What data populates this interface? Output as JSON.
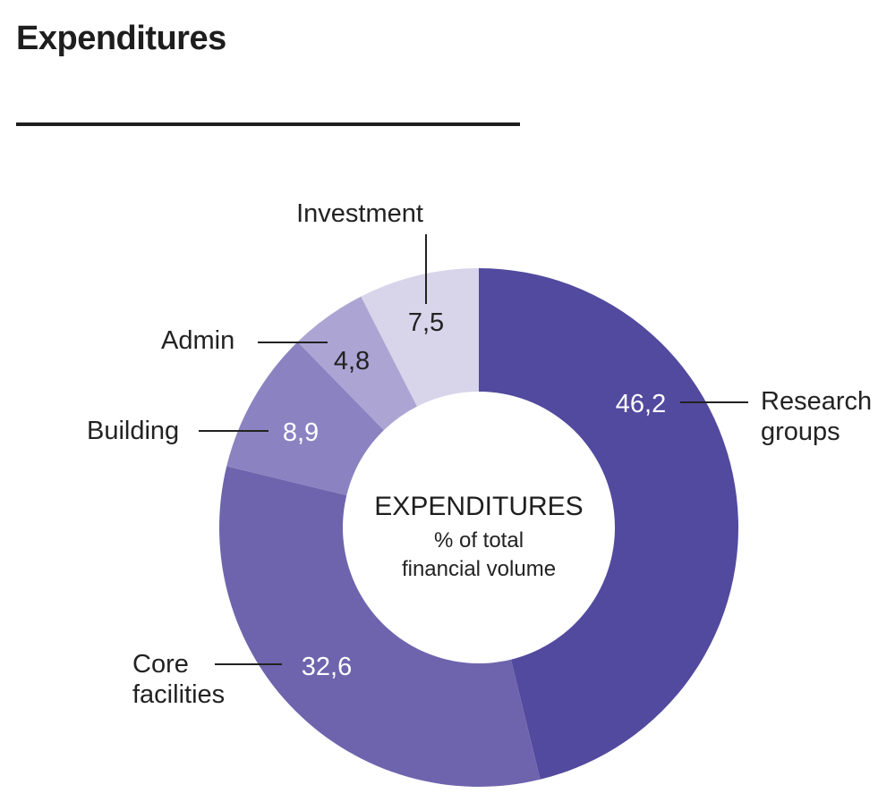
{
  "header": {
    "title": "Expenditures"
  },
  "chart_data": {
    "type": "pie",
    "donut": true,
    "center_title": "EXPENDITURES",
    "center_subtitle": [
      "% of total",
      "financial volume"
    ],
    "slices": [
      {
        "label": [
          "Research",
          "groups"
        ],
        "value": 46.2,
        "display": "46,2",
        "color": "#524a9e",
        "value_color": "#ffffff"
      },
      {
        "label": [
          "Core",
          "facilities"
        ],
        "value": 32.6,
        "display": "32,6",
        "color": "#6e64ad",
        "value_color": "#ffffff"
      },
      {
        "label": [
          "Building"
        ],
        "value": 8.9,
        "display": "8,9",
        "color": "#8b82c2",
        "value_color": "#ffffff"
      },
      {
        "label": [
          "Admin"
        ],
        "value": 4.8,
        "display": "4,8",
        "color": "#aca5d3",
        "value_color": "#222222"
      },
      {
        "label": [
          "Investment"
        ],
        "value": 7.5,
        "display": "7,5",
        "color": "#d8d4ea",
        "value_color": "#222222"
      }
    ],
    "value_unit": "%",
    "legend": "none"
  }
}
